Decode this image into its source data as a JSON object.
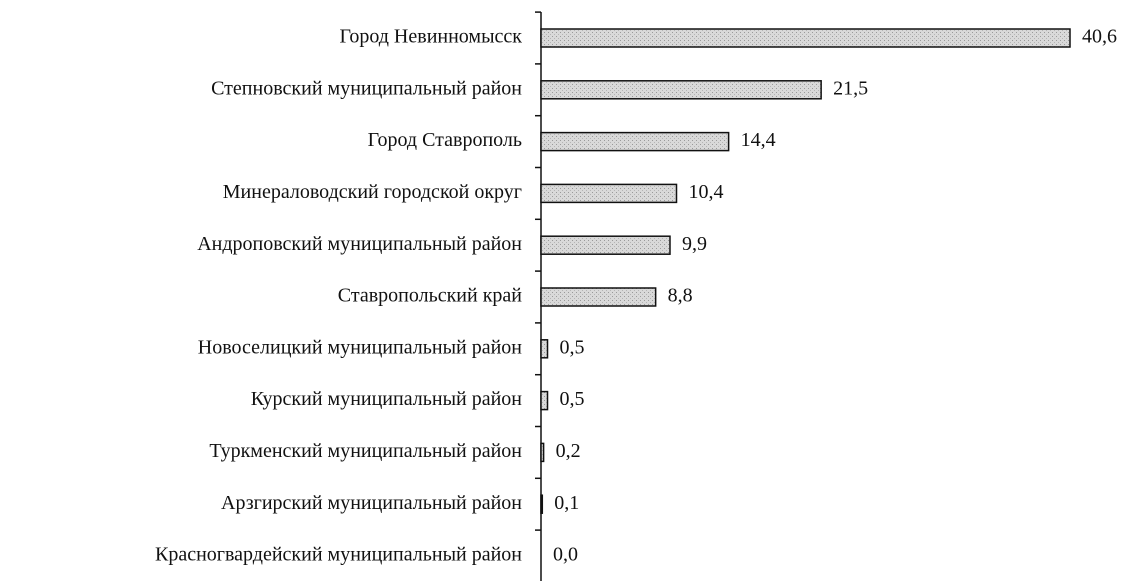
{
  "chart_data": {
    "type": "bar",
    "orientation": "horizontal",
    "categories": [
      "Город Невинномысск",
      "Степновский муниципальный район",
      "Город Ставрополь",
      "Минераловодский городской округ",
      "Андроповский муниципальный район",
      "Ставропольский край",
      "Новоселицкий муниципальный район",
      "Курский муниципальный район",
      "Туркменский муниципальный район",
      "Арзгирский муниципальный район",
      "Красногвардейский муниципальный район"
    ],
    "values": [
      40.6,
      21.5,
      14.4,
      10.4,
      9.9,
      8.8,
      0.5,
      0.5,
      0.2,
      0.1,
      0.0
    ],
    "value_labels": [
      "40,6",
      "21,5",
      "14,4",
      "10,4",
      "9,9",
      "8,8",
      "0,5",
      "0,5",
      "0,2",
      "0,1",
      "0,0"
    ],
    "color": "#d4d4d4"
  }
}
